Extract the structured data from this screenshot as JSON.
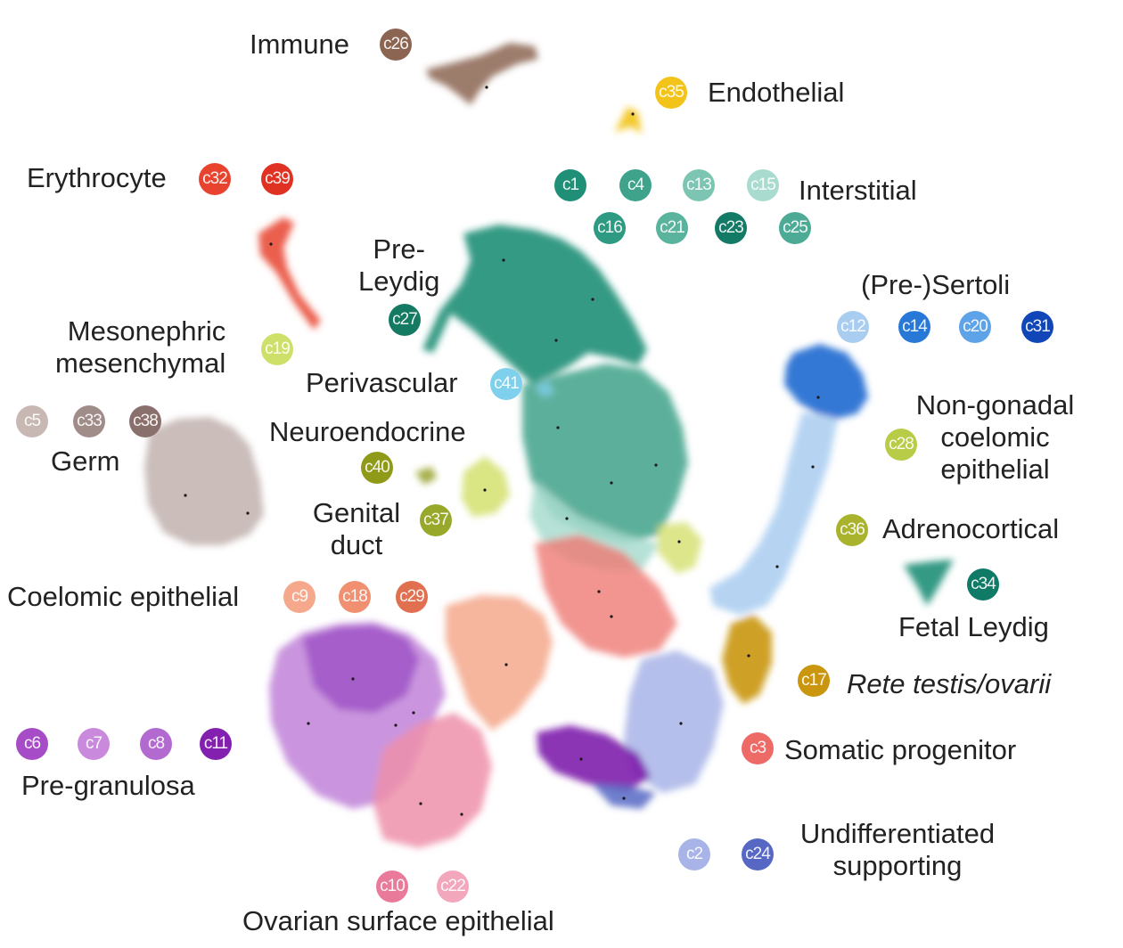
{
  "chart_data": {
    "type": "scatter",
    "title": "",
    "xlabel": "",
    "ylabel": "",
    "groups": [
      {
        "label": "Immune",
        "clusters": [
          {
            "id": "c26",
            "color": "#8b6552"
          }
        ]
      },
      {
        "label": "Endothelial",
        "clusters": [
          {
            "id": "c35",
            "color": "#f2c318"
          }
        ]
      },
      {
        "label": "Erythrocyte",
        "clusters": [
          {
            "id": "c32",
            "color": "#e8432e"
          },
          {
            "id": "c39",
            "color": "#e03222"
          }
        ]
      },
      {
        "label": "Interstitial",
        "clusters": [
          {
            "id": "c1",
            "color": "#1f8f77"
          },
          {
            "id": "c4",
            "color": "#3fa28a"
          },
          {
            "id": "c13",
            "color": "#7cc5b3"
          },
          {
            "id": "c15",
            "color": "#a9dccf"
          },
          {
            "id": "c16",
            "color": "#2e9a82"
          },
          {
            "id": "c21",
            "color": "#5ab39d"
          },
          {
            "id": "c23",
            "color": "#137a66"
          },
          {
            "id": "c25",
            "color": "#4dab95"
          }
        ]
      },
      {
        "label": "Pre-Leydig",
        "clusters": [
          {
            "id": "c27",
            "color": "#147a62"
          }
        ]
      },
      {
        "label": "(Pre-)Sertoli",
        "clusters": [
          {
            "id": "c12",
            "color": "#a9cdf0"
          },
          {
            "id": "c14",
            "color": "#2878d8"
          },
          {
            "id": "c20",
            "color": "#5ea3e8"
          },
          {
            "id": "c31",
            "color": "#1046b8"
          }
        ]
      },
      {
        "label": "Mesonephric mesenchymal",
        "clusters": [
          {
            "id": "c19",
            "color": "#cfe06a"
          }
        ]
      },
      {
        "label": "Perivascular",
        "clusters": [
          {
            "id": "c41",
            "color": "#7fd0ec"
          }
        ]
      },
      {
        "label": "Non-gonadal coelomic epithelial",
        "clusters": [
          {
            "id": "c28",
            "color": "#b8cc48"
          }
        ]
      },
      {
        "label": "Germ",
        "clusters": [
          {
            "id": "c5",
            "color": "#c8b8b4"
          },
          {
            "id": "c33",
            "color": "#a08c88"
          },
          {
            "id": "c38",
            "color": "#8a706c"
          }
        ]
      },
      {
        "label": "Neuroendocrine",
        "clusters": [
          {
            "id": "c40",
            "color": "#8e9a18"
          }
        ]
      },
      {
        "label": "Genital duct",
        "clusters": [
          {
            "id": "c37",
            "color": "#98a82a"
          }
        ]
      },
      {
        "label": "Adrenocortical",
        "clusters": [
          {
            "id": "c36",
            "color": "#a9b42c"
          }
        ]
      },
      {
        "label": "Fetal Leydig",
        "clusters": [
          {
            "id": "c34",
            "color": "#0f7a66"
          }
        ]
      },
      {
        "label": "Coelomic epithelial",
        "clusters": [
          {
            "id": "c9",
            "color": "#f5a88c"
          },
          {
            "id": "c18",
            "color": "#f09070"
          },
          {
            "id": "c29",
            "color": "#e07050"
          }
        ]
      },
      {
        "label": "Rete testis/ovarii",
        "italic": true,
        "clusters": [
          {
            "id": "c17",
            "color": "#c9960e"
          }
        ]
      },
      {
        "label": "Somatic progenitor",
        "clusters": [
          {
            "id": "c3",
            "color": "#ee6a66"
          }
        ]
      },
      {
        "label": "Pre-granulosa",
        "clusters": [
          {
            "id": "c6",
            "color": "#a64cc6"
          },
          {
            "id": "c7",
            "color": "#c98ade"
          },
          {
            "id": "c8",
            "color": "#b36ad0"
          },
          {
            "id": "c11",
            "color": "#8420b0"
          }
        ]
      },
      {
        "label": "Undifferentiated supporting",
        "clusters": [
          {
            "id": "c2",
            "color": "#a8b4e8"
          },
          {
            "id": "c24",
            "color": "#5668c4"
          }
        ]
      },
      {
        "label": "Ovarian surface epithelial",
        "clusters": [
          {
            "id": "c10",
            "color": "#ea7a9a"
          },
          {
            "id": "c22",
            "color": "#f3a7bc"
          }
        ]
      }
    ]
  },
  "text": {
    "immune": "Immune",
    "endothelial": "Endothelial",
    "erythrocyte": "Erythrocyte",
    "interstitial": "Interstitial",
    "pre_leydig": "Pre-\nLeydig",
    "pre_sertoli": "(Pre-)Sertoli",
    "mesonephric": "Mesonephric\nmesenchymal",
    "perivascular": "Perivascular",
    "non_gonadal": "Non-gonadal\ncoelomic\nepithelial",
    "germ": "Germ",
    "neuroendocrine": "Neuroendocrine",
    "genital_duct": "Genital\nduct",
    "adrenocortical": "Adrenocortical",
    "fetal_leydig": "Fetal Leydig",
    "coelomic": "Coelomic epithelial",
    "rete": "Rete testis/ovarii",
    "somatic": "Somatic progenitor",
    "pre_granulosa": "Pre-granulosa",
    "undiff": "Undifferentiated\nsupporting",
    "ovarian": "Ovarian surface epithelial"
  },
  "badges": {
    "c26": "c26",
    "c35": "c35",
    "c32": "c32",
    "c39": "c39",
    "c1": "c1",
    "c4": "c4",
    "c13": "c13",
    "c15": "c15",
    "c16": "c16",
    "c21": "c21",
    "c23": "c23",
    "c25": "c25",
    "c27": "c27",
    "c12": "c12",
    "c14": "c14",
    "c20": "c20",
    "c31": "c31",
    "c19": "c19",
    "c41": "c41",
    "c28": "c28",
    "c5": "c5",
    "c33": "c33",
    "c38": "c38",
    "c40": "c40",
    "c37": "c37",
    "c36": "c36",
    "c34": "c34",
    "c9": "c9",
    "c18": "c18",
    "c29": "c29",
    "c17": "c17",
    "c3": "c3",
    "c6": "c6",
    "c7": "c7",
    "c8": "c8",
    "c11": "c11",
    "c2": "c2",
    "c24": "c24",
    "c10": "c10",
    "c22": "c22"
  },
  "colors": {
    "immune": "#8b6552",
    "endothelial": "#f2c318",
    "erythrocyte": "#e8432e",
    "interstitial_dark": "#1f8f77",
    "interstitial_mid": "#3fa28a",
    "interstitial_light": "#a9dccf",
    "sertoli_dark": "#1e6ad0",
    "sertoli_light": "#a9cdf0",
    "germ": "#c4b6b2",
    "mesonephric": "#d4e06e",
    "coelomic": "#f5a88c",
    "somatic": "#ef7b74",
    "rete": "#c9960e",
    "granulosa_light": "#c48ada",
    "granulosa_dark": "#9c50c4",
    "ovarian": "#ee90aa",
    "undiff_light": "#a8b4e8",
    "undiff_dark": "#5668c4",
    "granulosa_deep": "#7e1cac",
    "neuroendocrine": "#8e9a18",
    "perivascular": "#7fd0ec"
  }
}
